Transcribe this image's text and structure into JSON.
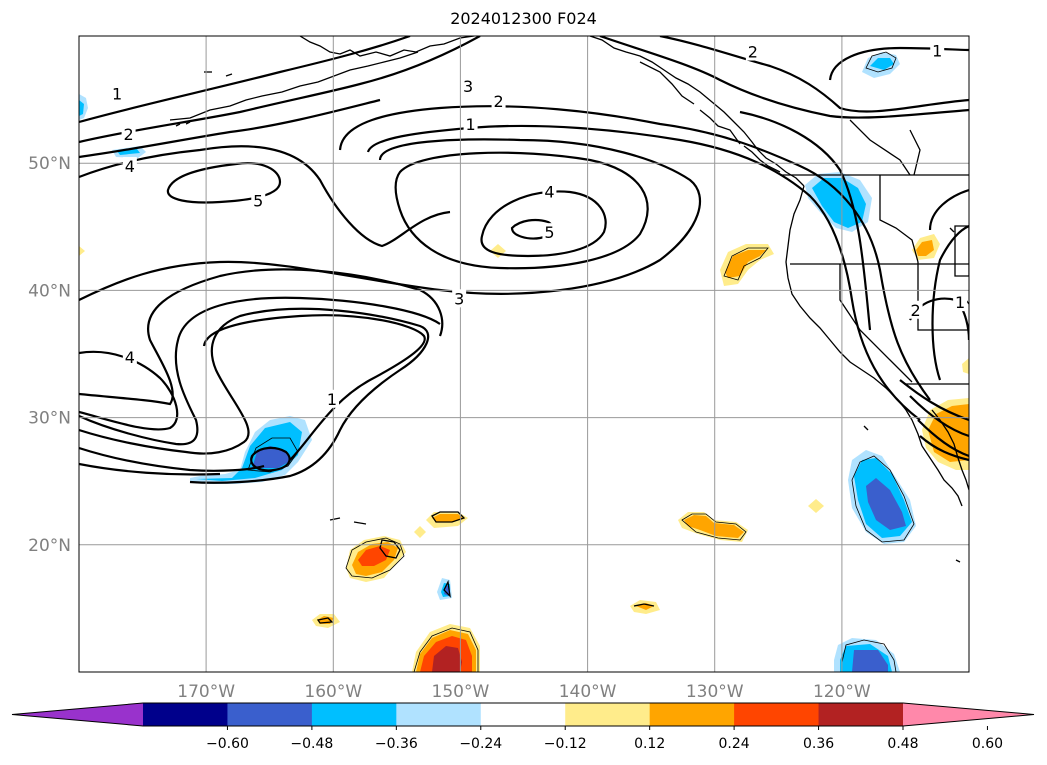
{
  "title": "2024012300 F024",
  "map": {
    "type": "map",
    "projection": "PlateCarree",
    "extent_lon": [
      -180,
      -110
    ],
    "extent_lat": [
      10,
      60
    ],
    "lat_ticks": [
      {
        "lat": 50,
        "label": "50°N"
      },
      {
        "lat": 40,
        "label": "40°N"
      },
      {
        "lat": 30,
        "label": "30°N"
      },
      {
        "lat": 20,
        "label": "20°N"
      }
    ],
    "lon_ticks": [
      {
        "lon": -170,
        "label": "170°W"
      },
      {
        "lon": -160,
        "label": "160°W"
      },
      {
        "lon": -150,
        "label": "150°W"
      },
      {
        "lon": -140,
        "label": "140°W"
      },
      {
        "lon": -130,
        "label": "130°W"
      },
      {
        "lon": -120,
        "label": "120°W"
      }
    ],
    "grid": true,
    "contour_labels": [
      {
        "text": "1",
        "lon": -177,
        "lat": 55.4
      },
      {
        "text": "2",
        "lon": -176.1,
        "lat": 52.2
      },
      {
        "text": "4",
        "lon": -176.0,
        "lat": 49.7
      },
      {
        "text": "5",
        "lon": -165.9,
        "lat": 47.0
      },
      {
        "text": "3",
        "lon": -149.4,
        "lat": 56.0
      },
      {
        "text": "2",
        "lon": -147.0,
        "lat": 54.8
      },
      {
        "text": "1",
        "lon": -149.2,
        "lat": 53.0
      },
      {
        "text": "4",
        "lon": -143.0,
        "lat": 47.7
      },
      {
        "text": "5",
        "lon": -143.0,
        "lat": 44.5
      },
      {
        "text": "3",
        "lon": -150.1,
        "lat": 39.3
      },
      {
        "text": "4",
        "lon": -176.0,
        "lat": 34.7
      },
      {
        "text": "1",
        "lon": -160.1,
        "lat": 31.4
      },
      {
        "text": "2",
        "lon": -127.0,
        "lat": 58.7
      },
      {
        "text": "1",
        "lon": -112.5,
        "lat": 58.8
      },
      {
        "text": "2",
        "lon": -114.2,
        "lat": 38.4
      },
      {
        "text": "1",
        "lon": -110.7,
        "lat": 39.0
      }
    ]
  },
  "colorbar": {
    "extend": "both",
    "colors": [
      "#9932cc",
      "#00008b",
      "#3a5fcd",
      "#00bfff",
      "#b0e2ff",
      "#ffffff",
      "#ffec8b",
      "#ffa500",
      "#ff4500",
      "#b22222",
      "#ff88aa"
    ],
    "ticks": [
      "−0.60",
      "−0.48",
      "−0.36",
      "−0.24",
      "−0.12",
      "0.12",
      "0.24",
      "0.36",
      "0.48",
      "0.60"
    ]
  }
}
